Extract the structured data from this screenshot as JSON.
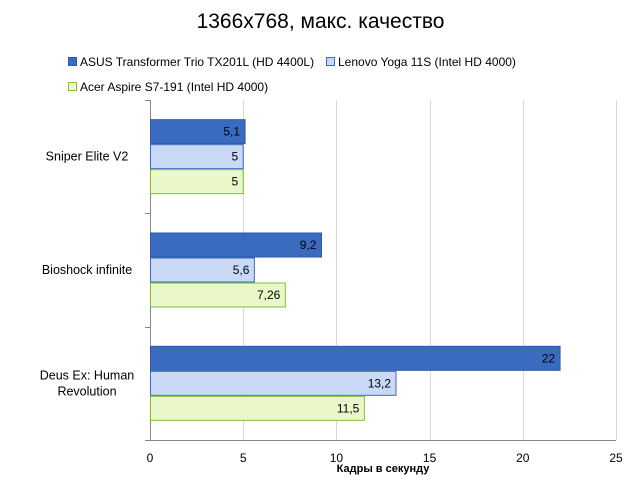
{
  "chart_data": {
    "type": "bar",
    "orientation": "horizontal",
    "title": "1366x768, макс. качество",
    "xlabel": "Кадры  в секунду",
    "ylabel": "",
    "xlim": [
      0,
      25
    ],
    "x_ticks": [
      "0",
      "5",
      "10",
      "15",
      "20",
      "25"
    ],
    "grid": true,
    "legend_position": "top",
    "categories": [
      [
        "Sniper Elite V2"
      ],
      [
        "Bioshock infinite"
      ],
      [
        "Deus Ex: Human",
        "Revolution"
      ]
    ],
    "series": [
      {
        "name": "ASUS Transformer Trio TX201L (HD 4400L)",
        "color": "#3a6bbf",
        "values": [
          5.1,
          9.2,
          22
        ],
        "labels": [
          "5,1",
          "9,2",
          "22"
        ]
      },
      {
        "name": "Lenovo Yoga 11S (Intel HD 4000)",
        "color": "#c9d8f5",
        "values": [
          5,
          5.6,
          13.2
        ],
        "labels": [
          "5",
          "5,6",
          "13,2"
        ]
      },
      {
        "name": "Acer Aspire S7-191 (Intel HD 4000)",
        "color": "#eaf8c9",
        "values": [
          5,
          7.26,
          11.5
        ],
        "labels": [
          "5",
          "7,26",
          "11,5"
        ]
      }
    ]
  }
}
